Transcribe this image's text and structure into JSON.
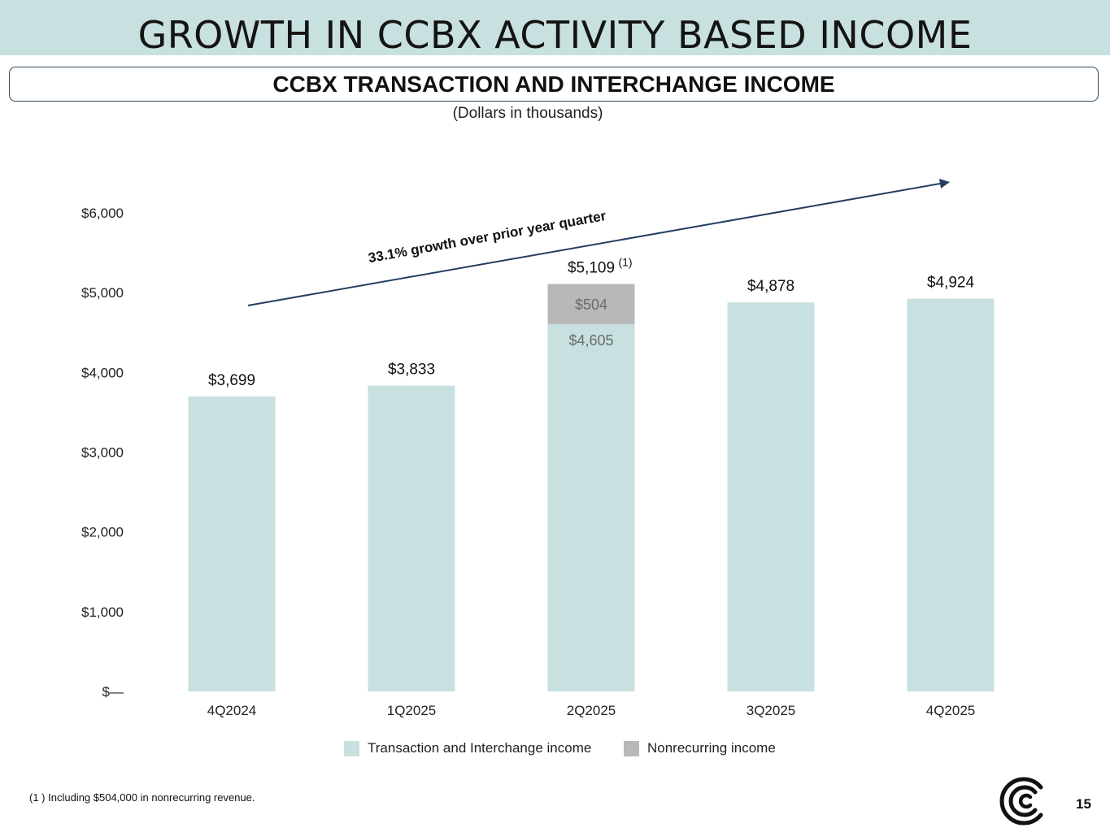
{
  "page": {
    "title": "GROWTH IN CCBX ACTIVITY BASED INCOME",
    "subtitle": "CCBX TRANSACTION AND INTERCHANGE INCOME",
    "units_note": "(Dollars in thousands)",
    "footnote": "(1 ) Including $504,000 in nonrecurring revenue.",
    "page_number": "15",
    "logo": "company-logo-icon"
  },
  "colors": {
    "title_band": "#c8e0df",
    "bar_primary": "#c8e0df",
    "bar_nonrecurring": "#b8b8b8",
    "arrow": "#243f5e"
  },
  "chart_data": {
    "type": "bar",
    "stacked": true,
    "title": "CCBX TRANSACTION AND INTERCHANGE INCOME",
    "categories": [
      "4Q2024",
      "1Q2025",
      "2Q2025",
      "3Q2025",
      "4Q2025"
    ],
    "series": [
      {
        "name": "Transaction and Interchange income",
        "values": [
          3699,
          3833,
          4605,
          4878,
          4924
        ]
      },
      {
        "name": "Nonrecurring income",
        "values": [
          0,
          0,
          504,
          0,
          0
        ]
      }
    ],
    "totals": [
      3699,
      3833,
      5109,
      4878,
      4924
    ],
    "total_labels": [
      "$3,699",
      "$3,833",
      "$5,109",
      "$4,878",
      "$4,924"
    ],
    "segment_labels": [
      {
        "category": "2Q2025",
        "series": "Transaction and Interchange income",
        "text": "$4,605"
      },
      {
        "category": "2Q2025",
        "series": "Nonrecurring income",
        "text": "$504"
      }
    ],
    "total_footnote_marker": {
      "category": "2Q2025",
      "text": "(1)"
    },
    "yticks": [
      0,
      1000,
      2000,
      3000,
      4000,
      5000,
      6000
    ],
    "ytick_labels": [
      "$—",
      "$1,000",
      "$2,000",
      "$3,000",
      "$4,000",
      "$5,000",
      "$6,000"
    ],
    "ylim": [
      0,
      6000
    ],
    "xlabel": "",
    "ylabel": "",
    "grid": false,
    "legend_position": "bottom",
    "annotation": {
      "text": "33.1% growth over prior year quarter",
      "type": "trend-arrow"
    }
  }
}
